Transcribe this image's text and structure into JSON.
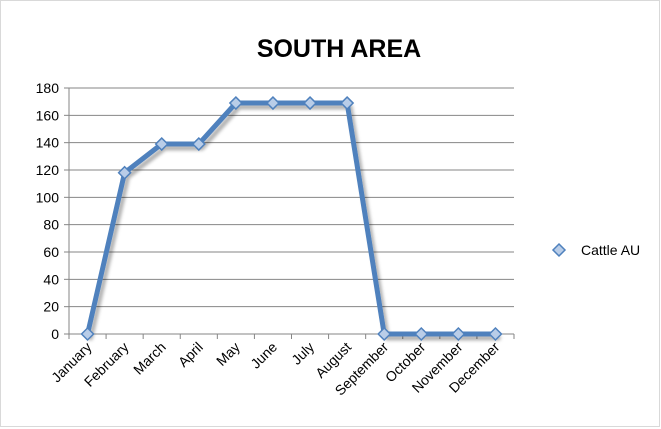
{
  "chart_data": {
    "type": "line",
    "title": "SOUTH AREA",
    "categories": [
      "January",
      "February",
      "March",
      "April",
      "May",
      "June",
      "July",
      "August",
      "September",
      "October",
      "November",
      "December"
    ],
    "series": [
      {
        "name": "Cattle AU",
        "values": [
          0,
          118,
          139,
          139,
          169,
          169,
          169,
          169,
          0,
          0,
          0,
          0
        ]
      }
    ],
    "ylim": [
      0,
      180
    ],
    "yticks": [
      0,
      20,
      40,
      60,
      80,
      100,
      120,
      140,
      160,
      180
    ],
    "grid": true,
    "legend_position": "right",
    "colors": {
      "line": "#4f81bd",
      "marker_fill": "#b9cde8",
      "marker_stroke": "#4f81bd",
      "grid": "#868686",
      "text": "#000000"
    }
  }
}
